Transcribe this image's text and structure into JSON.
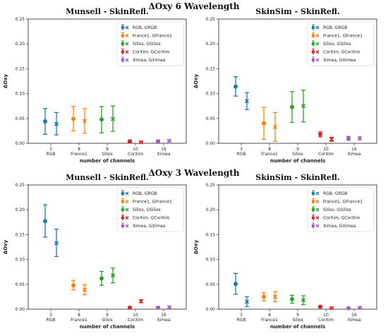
{
  "figure": {
    "titles": [
      "ΔOxy 6 Wavelength",
      "ΔOxy 3 Wavelength"
    ]
  },
  "legend_entries": [
    "RGB, GRGB",
    "France1, GFrance1",
    "Silios, GSilios",
    "CorXim, GCorXim",
    "Ximea, GXimea"
  ],
  "colors": [
    "#1f77b4",
    "#ff7f0e",
    "#2ca02c",
    "#d62728",
    "#9467bd"
  ],
  "markers": [
    "circle",
    "x"
  ],
  "chart_data": [
    {
      "type": "errorbar",
      "title": "Munsell - SkinRefl.",
      "xlabel": "number of channels",
      "ylabel": "ΔOxy",
      "ylim": [
        0,
        0.25
      ],
      "yticks": [
        "0.00",
        "0.05",
        "0.10",
        "0.15",
        "0.20",
        "0.25"
      ],
      "grid": false,
      "legend_position": "top-right",
      "categories": [
        [
          "3",
          "RGB"
        ],
        [
          "8",
          "France1"
        ],
        [
          "9",
          "Silios"
        ],
        [
          "10",
          "CorXim"
        ],
        [
          "16",
          "Ximea"
        ]
      ],
      "series": [
        {
          "name": "RGB, GRGB",
          "points": [
            {
              "mean": 0.044,
              "low": 0.018,
              "high": 0.07
            },
            {
              "mean": 0.039,
              "low": 0.017,
              "high": 0.062
            }
          ]
        },
        {
          "name": "France1, GFrance1",
          "points": [
            {
              "mean": 0.049,
              "low": 0.025,
              "high": 0.074
            },
            {
              "mean": 0.045,
              "low": 0.02,
              "high": 0.07
            }
          ]
        },
        {
          "name": "Silios, GSilios",
          "points": [
            {
              "mean": 0.048,
              "low": 0.021,
              "high": 0.074
            },
            {
              "mean": 0.049,
              "low": 0.024,
              "high": 0.075
            }
          ]
        },
        {
          "name": "CorXim, GCorXim",
          "points": [
            {
              "mean": 0.004,
              "low": 0.002,
              "high": 0.006
            },
            {
              "mean": 0.002,
              "low": 0.001,
              "high": 0.004
            }
          ]
        },
        {
          "name": "Ximea, GXimea",
          "points": [
            {
              "mean": 0.004,
              "low": 0.002,
              "high": 0.006
            },
            {
              "mean": 0.005,
              "low": 0.003,
              "high": 0.007
            }
          ]
        }
      ]
    },
    {
      "type": "errorbar",
      "title": "SkinSim - SkinRefl.",
      "xlabel": "number of channels",
      "ylabel": "ΔOxy",
      "ylim": [
        0,
        0.25
      ],
      "yticks": [
        "0.00",
        "0.05",
        "0.10",
        "0.15",
        "0.20",
        "0.25"
      ],
      "grid": false,
      "legend_position": "top-right",
      "categories": [
        [
          "3",
          "RGB"
        ],
        [
          "8",
          "France1"
        ],
        [
          "9",
          "Silios"
        ],
        [
          "10",
          "CorXim"
        ],
        [
          "16",
          "Ximea"
        ]
      ],
      "series": [
        {
          "name": "RGB, GRGB",
          "points": [
            {
              "mean": 0.114,
              "low": 0.095,
              "high": 0.134
            },
            {
              "mean": 0.085,
              "low": 0.068,
              "high": 0.102
            }
          ]
        },
        {
          "name": "France1, GFrance1",
          "points": [
            {
              "mean": 0.04,
              "low": 0.008,
              "high": 0.072
            },
            {
              "mean": 0.033,
              "low": 0.004,
              "high": 0.062
            }
          ]
        },
        {
          "name": "Silios, GSilios",
          "points": [
            {
              "mean": 0.073,
              "low": 0.042,
              "high": 0.104
            },
            {
              "mean": 0.075,
              "low": 0.043,
              "high": 0.107
            }
          ]
        },
        {
          "name": "CorXim, GCorXim",
          "points": [
            {
              "mean": 0.018,
              "low": 0.013,
              "high": 0.023
            },
            {
              "mean": 0.008,
              "low": 0.004,
              "high": 0.012
            }
          ]
        },
        {
          "name": "Ximea, GXimea",
          "points": [
            {
              "mean": 0.01,
              "low": 0.006,
              "high": 0.014
            },
            {
              "mean": 0.01,
              "low": 0.007,
              "high": 0.013
            }
          ]
        }
      ]
    },
    {
      "type": "errorbar",
      "title": "Munsell - SkinRefl.",
      "xlabel": "number of channels",
      "ylabel": "ΔOxy",
      "ylim": [
        0,
        0.25
      ],
      "yticks": [
        "0.00",
        "0.05",
        "0.10",
        "0.15",
        "0.20",
        "0.25"
      ],
      "grid": false,
      "legend_position": "top-right",
      "categories": [
        [
          "3",
          "RGB"
        ],
        [
          "8",
          "France1"
        ],
        [
          "9",
          "Silios"
        ],
        [
          "10",
          "CorXim"
        ],
        [
          "16",
          "Ximea"
        ]
      ],
      "series": [
        {
          "name": "RGB, GRGB",
          "points": [
            {
              "mean": 0.177,
              "low": 0.145,
              "high": 0.21
            },
            {
              "mean": 0.133,
              "low": 0.106,
              "high": 0.161
            }
          ]
        },
        {
          "name": "France1, GFrance1",
          "points": [
            {
              "mean": 0.048,
              "low": 0.039,
              "high": 0.058
            },
            {
              "mean": 0.039,
              "low": 0.029,
              "high": 0.049
            }
          ]
        },
        {
          "name": "Silios, GSilios",
          "points": [
            {
              "mean": 0.062,
              "low": 0.048,
              "high": 0.076
            },
            {
              "mean": 0.068,
              "low": 0.053,
              "high": 0.083
            }
          ]
        },
        {
          "name": "CorXim, GCorXim",
          "points": [
            {
              "mean": 0.003,
              "low": 0.001,
              "high": 0.005
            },
            {
              "mean": 0.016,
              "low": 0.013,
              "high": 0.019
            }
          ]
        },
        {
          "name": "Ximea, GXimea",
          "points": [
            {
              "mean": 0.003,
              "low": 0.001,
              "high": 0.005
            },
            {
              "mean": 0.004,
              "low": 0.002,
              "high": 0.006
            }
          ]
        }
      ]
    },
    {
      "type": "errorbar",
      "title": "SkinSim - SkinRefl.",
      "xlabel": "number of channels",
      "ylabel": "ΔOxy",
      "ylim": [
        0,
        0.25
      ],
      "yticks": [
        "0.00",
        "0.05",
        "0.10",
        "0.15",
        "0.20",
        "0.25"
      ],
      "grid": false,
      "legend_position": "top-right",
      "categories": [
        [
          "3",
          "RGB"
        ],
        [
          "8",
          "France1"
        ],
        [
          "9",
          "Silios"
        ],
        [
          "10",
          "CorXim"
        ],
        [
          "16",
          "Ximea"
        ]
      ],
      "series": [
        {
          "name": "RGB, GRGB",
          "points": [
            {
              "mean": 0.051,
              "low": 0.03,
              "high": 0.072
            },
            {
              "mean": 0.015,
              "low": 0.005,
              "high": 0.025
            }
          ]
        },
        {
          "name": "France1, GFrance1",
          "points": [
            {
              "mean": 0.025,
              "low": 0.017,
              "high": 0.033
            },
            {
              "mean": 0.025,
              "low": 0.015,
              "high": 0.035
            }
          ]
        },
        {
          "name": "Silios, GSilios",
          "points": [
            {
              "mean": 0.02,
              "low": 0.012,
              "high": 0.028
            },
            {
              "mean": 0.018,
              "low": 0.009,
              "high": 0.027
            }
          ]
        },
        {
          "name": "CorXim, GCorXim",
          "points": [
            {
              "mean": 0.005,
              "low": 0.003,
              "high": 0.007
            },
            {
              "mean": 0.002,
              "low": 0.001,
              "high": 0.004
            }
          ]
        },
        {
          "name": "Ximea, GXimea",
          "points": [
            {
              "mean": 0.002,
              "low": 0.001,
              "high": 0.003
            },
            {
              "mean": 0.003,
              "low": 0.002,
              "high": 0.005
            }
          ]
        }
      ]
    }
  ]
}
